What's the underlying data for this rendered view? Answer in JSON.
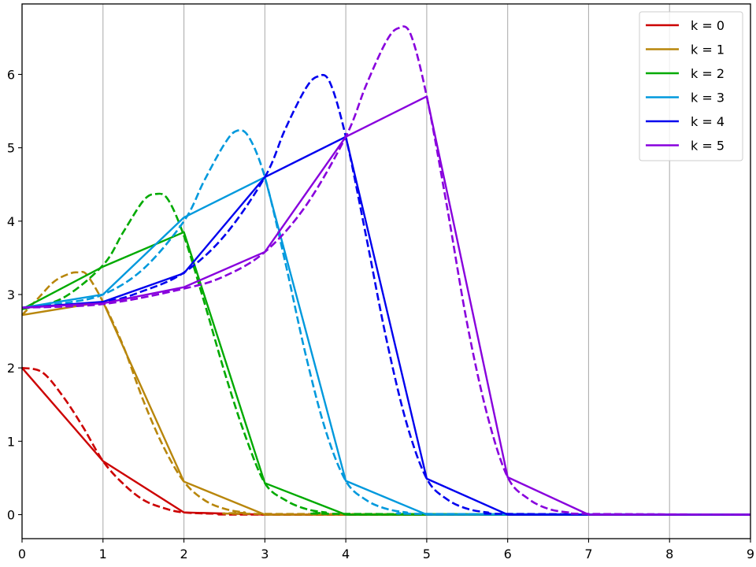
{
  "chart_data": {
    "type": "line",
    "title": "",
    "xlabel": "",
    "ylabel": "",
    "xlim": [
      0,
      9
    ],
    "ylim": [
      -0.33,
      6.95
    ],
    "x_ticks": [
      "0",
      "1",
      "2",
      "3",
      "4",
      "5",
      "6",
      "7",
      "8",
      "9"
    ],
    "y_ticks": [
      "0",
      "1",
      "2",
      "3",
      "4",
      "5",
      "6"
    ],
    "grid": {
      "x": true,
      "y": false
    },
    "legend": {
      "position": "upper right",
      "entries": [
        "k = 0",
        "k = 1",
        "k = 2",
        "k = 3",
        "k = 4",
        "k = 5"
      ]
    },
    "series": [
      {
        "name": "k = 0",
        "color": "#cc0000",
        "solid": {
          "x": [
            0,
            1,
            2,
            3,
            4,
            5,
            6,
            7,
            8,
            9
          ],
          "y": [
            2.0,
            0.73,
            0.03,
            0,
            0,
            0,
            0,
            0,
            0,
            0
          ]
        },
        "dashed": {
          "x": [
            0,
            0.25,
            0.5,
            0.75,
            1,
            1.25,
            1.5,
            1.75,
            2,
            2.5,
            3,
            9
          ],
          "y": [
            2.0,
            1.94,
            1.62,
            1.2,
            0.73,
            0.42,
            0.2,
            0.09,
            0.03,
            0.01,
            0,
            0
          ]
        }
      },
      {
        "name": "k = 1",
        "color": "#b8860b",
        "solid": {
          "x": [
            0,
            1,
            2,
            3,
            4,
            5,
            6,
            7,
            8,
            9
          ],
          "y": [
            2.72,
            2.9,
            0.45,
            0,
            0,
            0,
            0,
            0,
            0,
            0
          ]
        },
        "dashed": {
          "x": [
            0,
            0.2,
            0.4,
            0.6,
            0.7,
            0.8,
            1,
            1.25,
            1.5,
            1.75,
            2,
            2.25,
            2.5,
            2.75,
            3,
            9
          ],
          "y": [
            2.72,
            2.95,
            3.18,
            3.29,
            3.3,
            3.27,
            2.9,
            2.3,
            1.55,
            0.92,
            0.45,
            0.2,
            0.08,
            0.03,
            0.01,
            0
          ]
        }
      },
      {
        "name": "k = 2",
        "color": "#00aa00",
        "solid": {
          "x": [
            0,
            1,
            2,
            3,
            4,
            5,
            6,
            7,
            8,
            9
          ],
          "y": [
            2.8,
            3.38,
            3.85,
            0.43,
            0,
            0,
            0,
            0,
            0,
            0
          ]
        },
        "dashed": {
          "x": [
            0,
            0.5,
            1,
            1.25,
            1.5,
            1.65,
            1.8,
            2,
            2.25,
            2.5,
            2.75,
            3,
            3.25,
            3.5,
            3.75,
            4,
            9
          ],
          "y": [
            2.8,
            2.95,
            3.4,
            3.85,
            4.28,
            4.37,
            4.3,
            3.8,
            2.9,
            1.95,
            1.1,
            0.43,
            0.2,
            0.08,
            0.03,
            0.01,
            0
          ]
        }
      },
      {
        "name": "k = 3",
        "color": "#0099dd",
        "solid": {
          "x": [
            0,
            1,
            2,
            3,
            4,
            5,
            6,
            7,
            8,
            9
          ],
          "y": [
            2.82,
            3.0,
            4.05,
            4.6,
            0.46,
            0,
            0,
            0,
            0,
            0
          ]
        },
        "dashed": {
          "x": [
            0,
            0.5,
            1,
            1.5,
            2,
            2.25,
            2.5,
            2.65,
            2.8,
            3,
            3.25,
            3.5,
            3.75,
            4,
            4.25,
            4.5,
            4.75,
            5,
            9
          ],
          "y": [
            2.82,
            2.88,
            3.0,
            3.35,
            4.0,
            4.55,
            5.05,
            5.23,
            5.15,
            4.6,
            3.45,
            2.2,
            1.15,
            0.46,
            0.2,
            0.08,
            0.03,
            0.01,
            0
          ]
        }
      },
      {
        "name": "k = 4",
        "color": "#0000ee",
        "solid": {
          "x": [
            0,
            1,
            2,
            3,
            4,
            5,
            6,
            7,
            8,
            9
          ],
          "y": [
            2.82,
            2.9,
            3.29,
            4.6,
            5.15,
            0.49,
            0,
            0,
            0,
            0
          ]
        },
        "dashed": {
          "x": [
            0,
            1,
            1.5,
            2,
            2.5,
            3,
            3.25,
            3.5,
            3.65,
            3.8,
            4,
            4.25,
            4.5,
            4.75,
            5,
            5.25,
            5.5,
            5.75,
            6,
            9
          ],
          "y": [
            2.82,
            2.9,
            3.05,
            3.3,
            3.8,
            4.6,
            5.25,
            5.8,
            5.97,
            5.9,
            5.15,
            3.8,
            2.4,
            1.25,
            0.49,
            0.21,
            0.08,
            0.03,
            0.01,
            0
          ]
        }
      },
      {
        "name": "k = 5",
        "color": "#8800dd",
        "solid": {
          "x": [
            0,
            1,
            2,
            3,
            4,
            5,
            6,
            7,
            8,
            9
          ],
          "y": [
            2.82,
            2.88,
            3.1,
            3.58,
            5.15,
            5.7,
            0.51,
            0,
            0,
            0
          ]
        },
        "dashed": {
          "x": [
            0,
            1,
            2,
            2.5,
            3,
            3.5,
            4,
            4.25,
            4.5,
            4.65,
            4.8,
            5,
            5.25,
            5.5,
            5.75,
            6,
            6.25,
            6.5,
            6.75,
            7,
            9
          ],
          "y": [
            2.82,
            2.87,
            3.08,
            3.25,
            3.58,
            4.2,
            5.15,
            5.85,
            6.45,
            6.63,
            6.55,
            5.7,
            4.2,
            2.6,
            1.35,
            0.51,
            0.22,
            0.08,
            0.03,
            0.01,
            0
          ]
        }
      }
    ]
  }
}
